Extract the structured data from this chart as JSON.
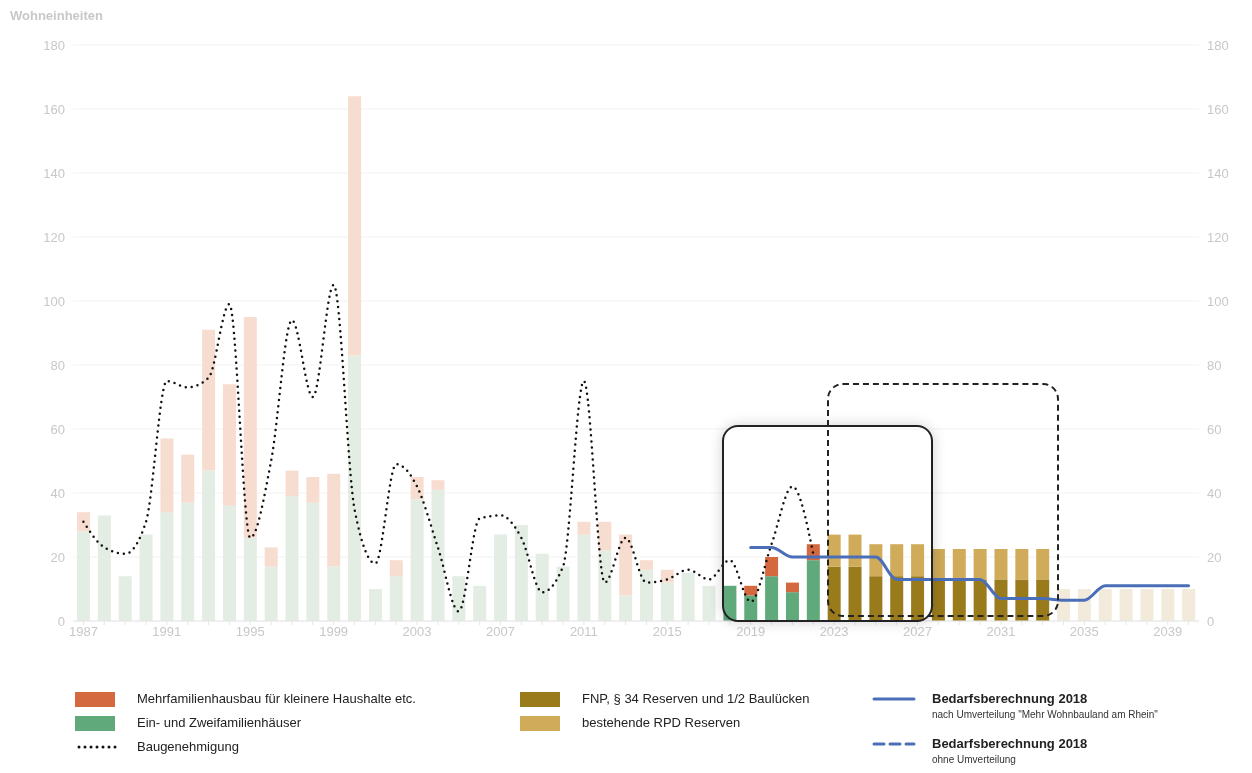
{
  "chart_data": {
    "type": "bar",
    "stacked": true,
    "ylabel": "Wohneinheiten",
    "categories": [
      "1987",
      null,
      null,
      null,
      "1991",
      null,
      null,
      null,
      "1995",
      null,
      null,
      null,
      "1999",
      null,
      null,
      null,
      "2003",
      null,
      null,
      null,
      "2007",
      null,
      null,
      null,
      "2011",
      null,
      null,
      null,
      "2015",
      null,
      null,
      null,
      "2019",
      null,
      null,
      null,
      "2023",
      null,
      null,
      null,
      "2027",
      null,
      null,
      null,
      "2031",
      null,
      null,
      null,
      "2035",
      null,
      null,
      null,
      "2039",
      null
    ],
    "ylim": [
      0,
      180
    ],
    "yticks": [
      0,
      20,
      40,
      60,
      80,
      100,
      120,
      140,
      160,
      180
    ],
    "y2lim": [
      0,
      180
    ],
    "y2ticks": [
      0,
      20,
      40,
      60,
      80,
      100,
      120,
      140,
      160,
      180
    ],
    "grid": "y",
    "legend": "bottom",
    "annotations": [
      "nach Umverteilung \"Mehr Wohnbauland am Rhein\"",
      "ohne Umverteilung"
    ],
    "series": [
      {
        "name": "Ein- und Zweifamilienhäuser",
        "color": "#5fa97b",
        "values": [
          28,
          33,
          14,
          27,
          34,
          37,
          47,
          36,
          26,
          17,
          39,
          37,
          17,
          83,
          10,
          14,
          38,
          41,
          14,
          11,
          27,
          30,
          21,
          17,
          27,
          22,
          8,
          16,
          12,
          15,
          11,
          11,
          8,
          14,
          9,
          19,
          null,
          null,
          null,
          null,
          null,
          null,
          null,
          null,
          null,
          null,
          null,
          null,
          null,
          null,
          null,
          null,
          null,
          null
        ],
        "colors": [
          "#e3ede4",
          "#e3ede4",
          "#e3ede4",
          "#e3ede4",
          "#e3ede4",
          "#e3ede4",
          "#e3ede4",
          "#e3ede4",
          "#e3ede4",
          "#e3ede4",
          "#e3ede4",
          "#e3ede4",
          "#e3ede4",
          "#e3ede4",
          "#e3ede4",
          "#e3ede4",
          "#e3ede4",
          "#e3ede4",
          "#e3ede4",
          "#e3ede4",
          "#e3ede4",
          "#e3ede4",
          "#e3ede4",
          "#e3ede4",
          "#e3ede4",
          "#e3ede4",
          "#e3ede4",
          "#e3ede4",
          "#e3ede4",
          "#e3ede4",
          "#e3ede4",
          "#5fa97b",
          "#5fa97b",
          "#5fa97b",
          "#5fa97b",
          "#5fa97b",
          "#5fa97b",
          "#5fa97b",
          "#5fa97b",
          "#5fa97b",
          "#5fa97b",
          "#5fa97b",
          "#5fa97b",
          "#5fa97b",
          "#5fa97b",
          "#5fa97b",
          "#5fa97b",
          "#5fa97b",
          "#5fa97b",
          "#5fa97b",
          "#5fa97b",
          "#5fa97b",
          "#5fa97b",
          "#5fa97b"
        ]
      },
      {
        "name": "Mehrfamilienhausbau für kleinere Haushalte etc.",
        "color": "#d4693f",
        "values": [
          6,
          null,
          null,
          null,
          23,
          15,
          44,
          38,
          69,
          6,
          8,
          8,
          29,
          81,
          null,
          5,
          7,
          3,
          null,
          null,
          null,
          null,
          null,
          null,
          4,
          9,
          19,
          3,
          4,
          null,
          null,
          null,
          3,
          6,
          3,
          5,
          null,
          null,
          null,
          null,
          null,
          null,
          null,
          null,
          null,
          null,
          null,
          null,
          null,
          null,
          null,
          null,
          null,
          null
        ],
        "colors": [
          "#f6ddd0",
          "#f6ddd0",
          "#f6ddd0",
          "#f6ddd0",
          "#f6ddd0",
          "#f6ddd0",
          "#f6ddd0",
          "#f6ddd0",
          "#f6ddd0",
          "#f6ddd0",
          "#f6ddd0",
          "#f6ddd0",
          "#f6ddd0",
          "#f6ddd0",
          "#f6ddd0",
          "#f6ddd0",
          "#f6ddd0",
          "#f6ddd0",
          "#f6ddd0",
          "#f6ddd0",
          "#f6ddd0",
          "#f6ddd0",
          "#f6ddd0",
          "#f6ddd0",
          "#f6ddd0",
          "#f6ddd0",
          "#f6ddd0",
          "#f6ddd0",
          "#f6ddd0",
          "#f6ddd0",
          "#f6ddd0",
          "#d4693f",
          "#d4693f",
          "#d4693f",
          "#d4693f",
          "#d4693f",
          "#d4693f",
          "#d4693f",
          "#d4693f",
          "#d4693f",
          "#d4693f",
          "#d4693f",
          "#d4693f",
          "#d4693f",
          "#d4693f",
          "#d4693f",
          "#d4693f",
          "#d4693f",
          "#d4693f",
          "#d4693f",
          "#d4693f",
          "#d4693f",
          "#d4693f",
          "#d4693f"
        ]
      },
      {
        "name": "FNP, § 34 Reserven und 1/2 Baulücken",
        "color": "#9a7b1c",
        "values": [
          null,
          null,
          null,
          null,
          null,
          null,
          null,
          null,
          null,
          null,
          null,
          null,
          null,
          null,
          null,
          null,
          null,
          null,
          null,
          null,
          null,
          null,
          null,
          null,
          null,
          null,
          null,
          null,
          null,
          null,
          null,
          null,
          null,
          null,
          null,
          null,
          17,
          17,
          14,
          14,
          14,
          13,
          13,
          13,
          13,
          13,
          13,
          null,
          null,
          null,
          null,
          null,
          null,
          null
        ]
      },
      {
        "name": "bestehende RPD Reserven",
        "color": "#cfab5a",
        "values": [
          null,
          null,
          null,
          null,
          null,
          null,
          null,
          null,
          null,
          null,
          null,
          null,
          null,
          null,
          null,
          null,
          null,
          null,
          null,
          null,
          null,
          null,
          null,
          null,
          null,
          null,
          null,
          null,
          null,
          null,
          null,
          null,
          null,
          null,
          null,
          null,
          10,
          10,
          10,
          10,
          10,
          9.5,
          9.5,
          9.5,
          9.5,
          9.5,
          9.5,
          10,
          10,
          10,
          10,
          10,
          10,
          10
        ],
        "colors": [
          "#cfab5a",
          "#cfab5a",
          "#cfab5a",
          "#cfab5a",
          "#cfab5a",
          "#cfab5a",
          "#cfab5a",
          "#cfab5a",
          "#cfab5a",
          "#cfab5a",
          "#cfab5a",
          "#cfab5a",
          "#cfab5a",
          "#cfab5a",
          "#cfab5a",
          "#cfab5a",
          "#cfab5a",
          "#cfab5a",
          "#cfab5a",
          "#cfab5a",
          "#cfab5a",
          "#cfab5a",
          "#cfab5a",
          "#cfab5a",
          "#cfab5a",
          "#cfab5a",
          "#cfab5a",
          "#cfab5a",
          "#cfab5a",
          "#cfab5a",
          "#cfab5a",
          "#cfab5a",
          "#cfab5a",
          "#cfab5a",
          "#cfab5a",
          "#cfab5a",
          "#cfab5a",
          "#cfab5a",
          "#cfab5a",
          "#cfab5a",
          "#cfab5a",
          "#cfab5a",
          "#cfab5a",
          "#cfab5a",
          "#cfab5a",
          "#cfab5a",
          "#cfab5a",
          "#f2ebdc",
          "#f2ebdc",
          "#f2ebdc",
          "#f2ebdc",
          "#f2ebdc",
          "#f2ebdc",
          "#f2ebdc"
        ]
      },
      {
        "name": "Baugenehmigung",
        "type": "line",
        "line_style": "dotted",
        "color": "#111111",
        "values": [
          31,
          23,
          21,
          31,
          75,
          73,
          76,
          99,
          26,
          50,
          94,
          70,
          105,
          35,
          18,
          49,
          42,
          23,
          3,
          32,
          33,
          26,
          9,
          17,
          75,
          12,
          26,
          12,
          13,
          16,
          13,
          19,
          6,
          24,
          42,
          21,
          null,
          null,
          null,
          null,
          null,
          null,
          null,
          null,
          null,
          null,
          null,
          null,
          null,
          null,
          null,
          null,
          null,
          null
        ]
      },
      {
        "name": "Bedarfsberechnung 2018",
        "type": "line",
        "line_style": "solid",
        "color": "#4a6fb8",
        "values": [
          null,
          null,
          null,
          null,
          null,
          null,
          null,
          null,
          null,
          null,
          null,
          null,
          null,
          null,
          null,
          null,
          null,
          null,
          null,
          null,
          null,
          null,
          null,
          null,
          null,
          null,
          null,
          null,
          null,
          null,
          null,
          null,
          23,
          23,
          20,
          20,
          20,
          20,
          20,
          13,
          13,
          13,
          13,
          13,
          7,
          7,
          7,
          6.5,
          6.5,
          11,
          11,
          11,
          11,
          11
        ]
      },
      {
        "name": "Bedarfsberechnung 2018",
        "type": "line",
        "line_style": "dashed",
        "color": "#4a6fb8",
        "values": [
          null,
          null,
          null,
          null,
          null,
          null,
          null,
          null,
          null,
          null,
          null,
          null,
          null,
          null,
          null,
          null,
          null,
          null,
          null,
          null,
          null,
          null,
          null,
          null,
          null,
          null,
          null,
          null,
          null,
          null,
          null,
          null,
          null,
          null,
          null,
          null,
          null,
          null,
          null,
          null,
          null,
          null,
          null,
          null,
          null,
          null,
          null,
          null,
          null,
          null,
          null,
          null,
          null,
          null
        ]
      }
    ]
  }
}
